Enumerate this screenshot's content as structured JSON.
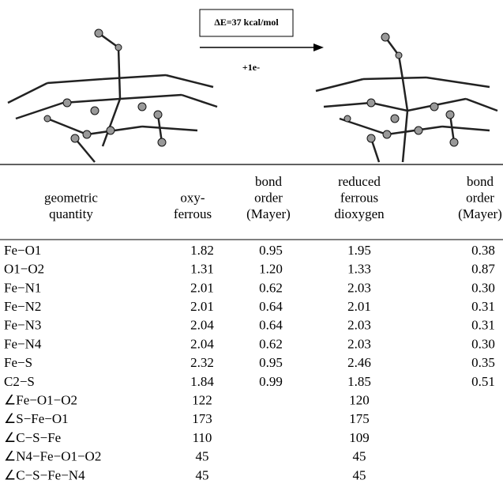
{
  "figure": {
    "energy": "ΔE=37 kcal/mol",
    "electron": "+1e-"
  },
  "table": {
    "header": [
      [
        "geometric",
        "quantity"
      ],
      [
        "oxy-",
        "ferrous"
      ],
      [
        "bond",
        "order",
        "(Mayer)"
      ],
      [
        "reduced",
        "ferrous",
        "dioxygen"
      ],
      [
        "bond",
        "order",
        "(Mayer)"
      ]
    ],
    "rows": [
      [
        "Fe−O1",
        "1.82",
        "0.95",
        "1.95",
        "0.38"
      ],
      [
        "O1−O2",
        "1.31",
        "1.20",
        "1.33",
        "0.87"
      ],
      [
        "Fe−N1",
        "2.01",
        "0.62",
        "2.03",
        "0.30"
      ],
      [
        "Fe−N2",
        "2.01",
        "0.64",
        "2.01",
        "0.31"
      ],
      [
        "Fe−N3",
        "2.04",
        "0.64",
        "2.03",
        "0.31"
      ],
      [
        "Fe−N4",
        "2.04",
        "0.62",
        "2.03",
        "0.30"
      ],
      [
        "Fe−S",
        "2.32",
        "0.95",
        "2.46",
        "0.35"
      ],
      [
        "C2−S",
        "1.84",
        "0.99",
        "1.85",
        "0.51"
      ],
      [
        "∠Fe−O1−O2",
        "122",
        null,
        "120",
        null
      ],
      [
        "∠S−Fe−O1",
        "173",
        null,
        "175",
        null
      ],
      [
        "∠C−S−Fe",
        "110",
        null,
        "109",
        null
      ],
      [
        "∠N4−Fe−O1−O2",
        "45",
        null,
        "45",
        null
      ],
      [
        "∠C−S−Fe−N4",
        "45",
        null,
        "45",
        null
      ]
    ]
  }
}
